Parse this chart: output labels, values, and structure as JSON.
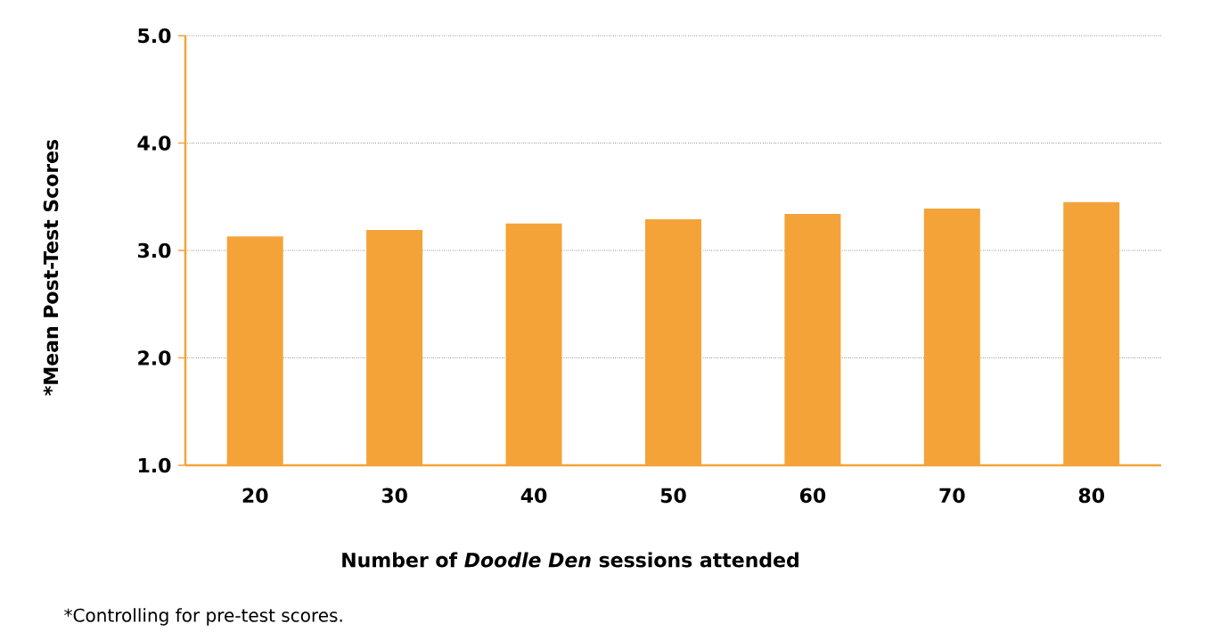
{
  "chart_data": {
    "type": "bar",
    "ylabel": "*Mean Post-Test Scores",
    "xlabel": "Number of *Doodle Den* sessions attended",
    "annotations": [
      "*Controlling for pre-test scores."
    ],
    "categories": [
      "20",
      "30",
      "40",
      "50",
      "60",
      "70",
      "80"
    ],
    "values": [
      3.13,
      3.19,
      3.25,
      3.29,
      3.34,
      3.39,
      3.45
    ],
    "color": "#f4a338",
    "ylim": [
      1,
      5
    ],
    "yticks": [
      {
        "value": 1,
        "label": "1.0"
      },
      {
        "value": 2,
        "label": "2.0"
      },
      {
        "value": 3,
        "label": "3.0"
      },
      {
        "value": 4,
        "label": "4.0"
      },
      {
        "value": 5,
        "label": "5.0"
      }
    ],
    "grid": "y"
  }
}
